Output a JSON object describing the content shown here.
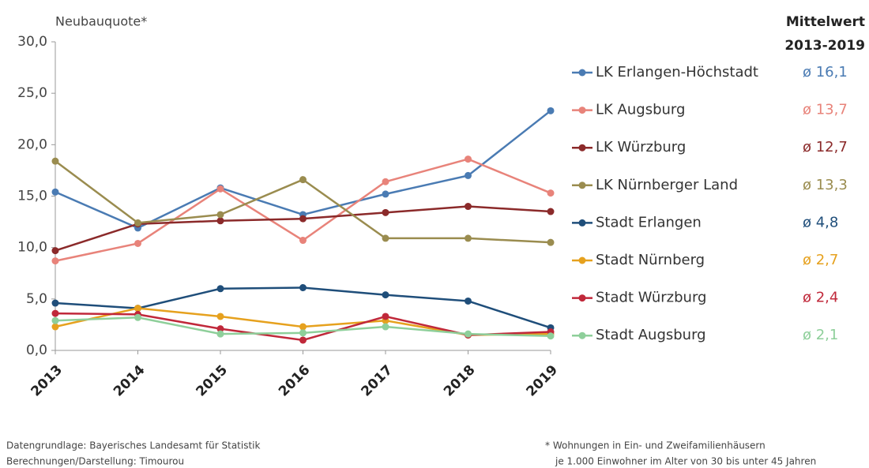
{
  "chart_data": {
    "type": "line",
    "y_label": "Neubauquote*",
    "categories": [
      "2013",
      "2014",
      "2015",
      "2016",
      "2017",
      "2018",
      "2019"
    ],
    "ylim": [
      0,
      30
    ],
    "yticks": [
      {
        "value": 0,
        "label": "0,0"
      },
      {
        "value": 5,
        "label": "5,0"
      },
      {
        "value": 10,
        "label": "10,0"
      },
      {
        "value": 15,
        "label": "15,0"
      },
      {
        "value": 20,
        "label": "20,0"
      },
      {
        "value": 25,
        "label": "25,0"
      },
      {
        "value": 30,
        "label": "30,0"
      }
    ],
    "legend_title": [
      "Mittelwert",
      "2013-2019"
    ],
    "series": [
      {
        "name": "LK Erlangen-Höchstadt",
        "color": "#4a7bb3",
        "values": [
          15.4,
          11.9,
          15.8,
          13.2,
          15.2,
          17.0,
          23.3
        ],
        "mean_label": "ø 16,1"
      },
      {
        "name": "LK Augsburg",
        "color": "#e8837a",
        "values": [
          8.7,
          10.4,
          15.7,
          10.7,
          16.4,
          18.6,
          15.3
        ],
        "mean_label": "ø 13,7"
      },
      {
        "name": "LK Würzburg",
        "color": "#8b2a2a",
        "values": [
          9.7,
          12.3,
          12.6,
          12.8,
          13.4,
          14.0,
          13.5
        ],
        "mean_label": "ø 12,7"
      },
      {
        "name": "LK Nürnberger Land",
        "color": "#9a8c4f",
        "values": [
          18.4,
          12.4,
          13.2,
          16.6,
          10.9,
          10.9,
          10.5
        ],
        "mean_label": "ø 13,3"
      },
      {
        "name": "Stadt Erlangen",
        "color": "#1f4e7a",
        "values": [
          4.6,
          4.1,
          6.0,
          6.1,
          5.4,
          4.8,
          2.2
        ],
        "mean_label": "ø 4,8"
      },
      {
        "name": "Stadt Nürnberg",
        "color": "#e6a11e",
        "values": [
          2.3,
          4.1,
          3.3,
          2.3,
          2.9,
          1.5,
          1.6
        ],
        "mean_label": "ø 2,7"
      },
      {
        "name": "Stadt Würzburg",
        "color": "#c0283a",
        "values": [
          3.6,
          3.5,
          2.1,
          1.0,
          3.3,
          1.5,
          1.8
        ],
        "mean_label": "ø 2,4"
      },
      {
        "name": "Stadt Augsburg",
        "color": "#8ecf9a",
        "values": [
          2.9,
          3.2,
          1.6,
          1.7,
          2.3,
          1.6,
          1.4
        ],
        "mean_label": "ø 2,1"
      }
    ],
    "source_notes": [
      "Datengrundlage: Bayerisches Landesamt für Statistik",
      "Berechnungen/Darstellung: Timourou"
    ],
    "footnotes": [
      "* Wohnungen in Ein- und Zweifamilienhäusern",
      "je 1.000 Einwohner im Alter von 30 bis unter 45 Jahren"
    ]
  }
}
